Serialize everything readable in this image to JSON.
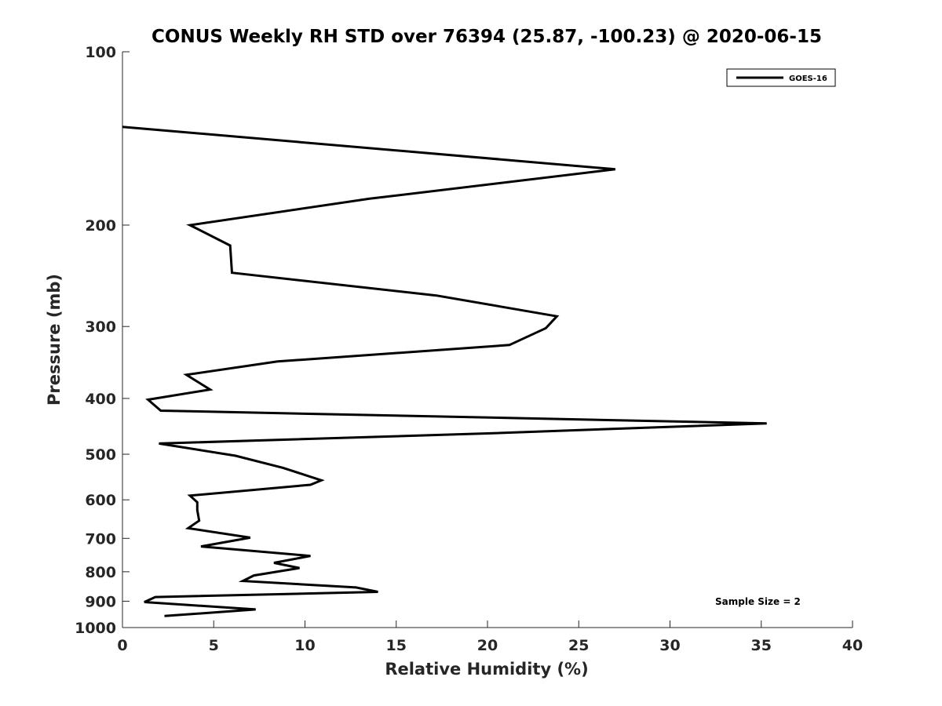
{
  "chart_data": {
    "type": "line",
    "title": "CONUS Weekly RH STD over 76394 (25.87, -100.23) @ 2020-06-15",
    "xlabel": "Relative Humidity (%)",
    "ylabel": "Pressure (mb)",
    "xlim": [
      0,
      40
    ],
    "ylim": [
      100,
      1000
    ],
    "y_scale": "log",
    "y_reversed": true,
    "x_ticks": [
      0,
      5,
      10,
      15,
      20,
      25,
      30,
      35,
      40
    ],
    "y_ticks": [
      100,
      200,
      300,
      400,
      500,
      600,
      700,
      800,
      900,
      1000
    ],
    "grid": false,
    "legend_position": "top-right",
    "series": [
      {
        "name": "GOES-16",
        "color": "#000000",
        "points": [
          [
            0.0,
            135
          ],
          [
            27.0,
            160
          ],
          [
            13.5,
            180
          ],
          [
            3.7,
            200
          ],
          [
            5.9,
            217
          ],
          [
            6.0,
            242
          ],
          [
            17.2,
            265
          ],
          [
            23.8,
            288
          ],
          [
            23.2,
            302
          ],
          [
            21.2,
            323
          ],
          [
            8.5,
            345
          ],
          [
            3.5,
            364
          ],
          [
            4.8,
            386
          ],
          [
            1.4,
            402
          ],
          [
            2.1,
            420
          ],
          [
            35.3,
            442
          ],
          [
            20.0,
            460
          ],
          [
            2.0,
            479
          ],
          [
            6.2,
            503
          ],
          [
            8.8,
            528
          ],
          [
            10.9,
            555
          ],
          [
            10.3,
            565
          ],
          [
            3.7,
            590
          ],
          [
            4.1,
            606
          ],
          [
            4.1,
            625
          ],
          [
            4.2,
            652
          ],
          [
            3.6,
            672
          ],
          [
            7.0,
            698
          ],
          [
            4.3,
            723
          ],
          [
            10.3,
            751
          ],
          [
            8.3,
            772
          ],
          [
            9.7,
            788
          ],
          [
            7.2,
            812
          ],
          [
            6.6,
            830
          ],
          [
            12.8,
            852
          ],
          [
            14.0,
            867
          ],
          [
            1.8,
            885
          ],
          [
            1.2,
            903
          ],
          [
            7.3,
            930
          ],
          [
            2.3,
            955
          ]
        ]
      }
    ],
    "annotations": [
      "Sample Size = 2"
    ]
  }
}
